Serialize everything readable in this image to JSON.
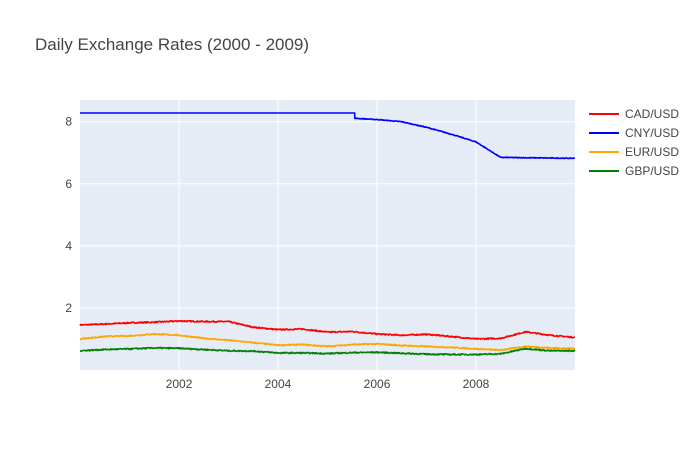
{
  "chart_data": {
    "type": "line",
    "title": "Daily Exchange Rates (2000 - 2009)",
    "xlabel": "",
    "ylabel": "",
    "xlim": [
      "2000-01-01",
      "2010-01-01"
    ],
    "ylim": [
      0,
      8.7
    ],
    "x_tick_labels": [
      "2002",
      "2004",
      "2006",
      "2008"
    ],
    "y_tick_labels": [
      "2",
      "4",
      "6",
      "8"
    ],
    "grid": true,
    "legend_position": "right",
    "series": [
      {
        "name": "CAD/USD",
        "color": "#ff0000",
        "x": [
          "2000-01-01",
          "2000-07-01",
          "2001-01-01",
          "2001-07-01",
          "2002-01-01",
          "2002-07-01",
          "2003-01-01",
          "2003-07-01",
          "2004-01-01",
          "2004-07-01",
          "2005-01-01",
          "2005-07-01",
          "2006-01-01",
          "2006-07-01",
          "2007-01-01",
          "2007-07-01",
          "2008-01-01",
          "2008-07-01",
          "2009-01-01",
          "2009-07-01",
          "2009-12-31"
        ],
        "values": [
          1.45,
          1.48,
          1.52,
          1.54,
          1.58,
          1.56,
          1.56,
          1.38,
          1.3,
          1.32,
          1.22,
          1.24,
          1.16,
          1.12,
          1.15,
          1.08,
          1.0,
          1.02,
          1.23,
          1.12,
          1.05
        ]
      },
      {
        "name": "CNY/USD",
        "color": "#0000ff",
        "x": [
          "2000-01-01",
          "2005-07-20",
          "2005-07-21",
          "2006-01-01",
          "2006-07-01",
          "2007-01-01",
          "2007-07-01",
          "2008-01-01",
          "2008-07-01",
          "2009-01-01",
          "2009-07-01",
          "2009-12-31"
        ],
        "values": [
          8.28,
          8.28,
          8.11,
          8.07,
          8.0,
          7.82,
          7.6,
          7.35,
          6.85,
          6.84,
          6.83,
          6.82
        ]
      },
      {
        "name": "EUR/USD",
        "color": "#ffa500",
        "x": [
          "2000-01-01",
          "2000-07-01",
          "2001-01-01",
          "2001-07-01",
          "2002-01-01",
          "2002-07-01",
          "2003-01-01",
          "2003-07-01",
          "2004-01-01",
          "2004-07-01",
          "2005-01-01",
          "2005-07-01",
          "2006-01-01",
          "2006-07-01",
          "2007-01-01",
          "2007-07-01",
          "2008-01-01",
          "2008-07-01",
          "2009-01-01",
          "2009-07-01",
          "2009-12-31"
        ],
        "values": [
          1.0,
          1.08,
          1.1,
          1.16,
          1.12,
          1.02,
          0.96,
          0.88,
          0.8,
          0.82,
          0.76,
          0.82,
          0.84,
          0.79,
          0.76,
          0.73,
          0.68,
          0.64,
          0.76,
          0.71,
          0.69
        ]
      },
      {
        "name": "GBP/USD",
        "color": "#008000",
        "x": [
          "2000-01-01",
          "2000-07-01",
          "2001-01-01",
          "2001-07-01",
          "2002-01-01",
          "2002-07-01",
          "2003-01-01",
          "2003-07-01",
          "2004-01-01",
          "2004-07-01",
          "2005-01-01",
          "2005-07-01",
          "2006-01-01",
          "2006-07-01",
          "2007-01-01",
          "2007-07-01",
          "2008-01-01",
          "2008-07-01",
          "2009-01-01",
          "2009-07-01",
          "2009-12-31"
        ],
        "values": [
          0.62,
          0.66,
          0.68,
          0.71,
          0.7,
          0.66,
          0.62,
          0.61,
          0.55,
          0.55,
          0.53,
          0.56,
          0.57,
          0.54,
          0.51,
          0.5,
          0.5,
          0.52,
          0.69,
          0.62,
          0.62
        ]
      }
    ]
  }
}
